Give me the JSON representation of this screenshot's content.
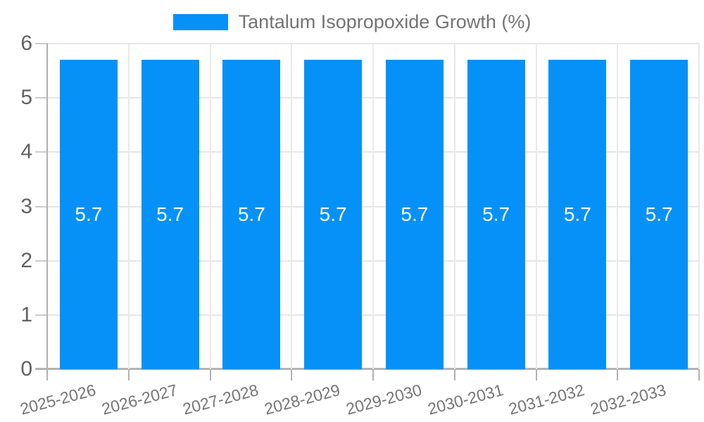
{
  "legend": {
    "label": "Tantalum Isopropoxide Growth (%)"
  },
  "chart_data": {
    "type": "bar",
    "title": "Tantalum Isopropoxide Growth (%)",
    "categories": [
      "2025-2026",
      "2026-2027",
      "2027-2028",
      "2028-2029",
      "2029-2030",
      "2030-2031",
      "2031-2032",
      "2032-2033"
    ],
    "series": [
      {
        "name": "Tantalum Isopropoxide Growth (%)",
        "color": "#0591f8",
        "values": [
          5.7,
          5.7,
          5.7,
          5.7,
          5.7,
          5.7,
          5.7,
          5.7
        ]
      }
    ],
    "bar_value_labels": [
      "5.7",
      "5.7",
      "5.7",
      "5.7",
      "5.7",
      "5.7",
      "5.7",
      "5.7"
    ],
    "xlabel": "",
    "ylabel": "",
    "ylim": [
      0,
      6
    ],
    "yticks": [
      0,
      1,
      2,
      3,
      4,
      5,
      6
    ],
    "grid": true,
    "legend_position": "top-center",
    "colors": {
      "bar": "#0591f8",
      "value_label_text": "#ffffff",
      "axis_line": "#b0b0b0",
      "gridline": "#e6e6e6",
      "y_label_text": "#616161",
      "x_label_text": "#757575",
      "legend_text": "#737373",
      "background": "#ffffff"
    }
  }
}
